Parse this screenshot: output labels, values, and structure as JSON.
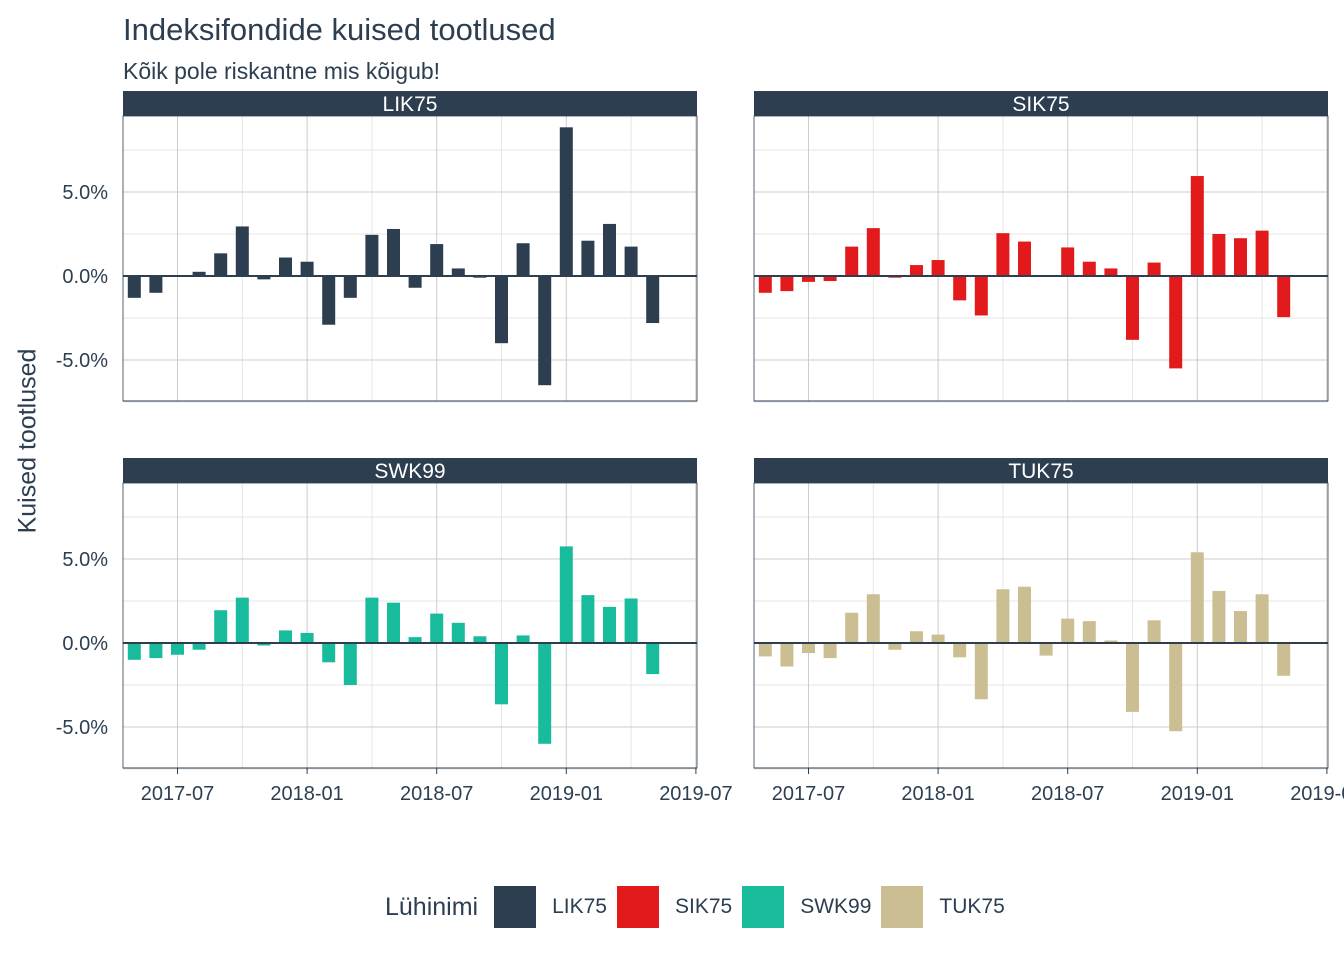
{
  "title": "Indeksifondide kuised tootlused",
  "subtitle": "Kõik pole riskantne mis kõigub!",
  "ylabel": "Kuised tootlused",
  "legend": {
    "title": "Lühinimi",
    "items": [
      {
        "label": "LIK75",
        "color": "#2c3e50"
      },
      {
        "label": "SIK75",
        "color": "#e31a1c"
      },
      {
        "label": "SWK99",
        "color": "#18bc9c"
      },
      {
        "label": "TUK75",
        "color": "#ccbe93"
      }
    ]
  },
  "chart_data": {
    "type": "bar",
    "facets": [
      "LIK75",
      "SIK75",
      "SWK99",
      "TUK75"
    ],
    "colors": {
      "LIK75": "#2c3e50",
      "SIK75": "#e31a1c",
      "SWK99": "#18bc9c",
      "TUK75": "#ccbe93"
    },
    "x_ticks": [
      "2017-07",
      "2018-01",
      "2018-07",
      "2019-01",
      "2019-07"
    ],
    "y_ticks": [
      "-5.0%",
      "0.0%",
      "5.0%"
    ],
    "y_tick_values": [
      -5,
      0,
      5
    ],
    "ylim": [
      -7.4,
      9.6
    ],
    "x": [
      "2017-05",
      "2017-06",
      "2017-07",
      "2017-08",
      "2017-09",
      "2017-10",
      "2017-11",
      "2017-12",
      "2018-01",
      "2018-02",
      "2018-03",
      "2018-04",
      "2018-05",
      "2018-06",
      "2018-07",
      "2018-08",
      "2018-09",
      "2018-10",
      "2018-11",
      "2018-12",
      "2019-01",
      "2019-02",
      "2019-03",
      "2019-04",
      "2019-05",
      "2019-06"
    ],
    "series": [
      {
        "name": "LIK75",
        "values": [
          -1.3,
          -1.0,
          0.0,
          0.25,
          1.35,
          2.95,
          -0.2,
          1.1,
          0.85,
          -2.9,
          -1.3,
          2.45,
          2.8,
          -0.7,
          1.9,
          0.45,
          -0.1,
          -4.0,
          1.95,
          -6.5,
          8.85,
          2.1,
          3.1,
          1.75,
          -2.8,
          null
        ]
      },
      {
        "name": "SIK75",
        "values": [
          -1.0,
          -0.9,
          -0.35,
          -0.3,
          1.75,
          2.85,
          -0.1,
          0.65,
          0.95,
          -1.45,
          -2.35,
          2.55,
          2.05,
          null,
          1.7,
          0.85,
          0.45,
          -3.8,
          0.8,
          -5.5,
          5.95,
          2.5,
          2.25,
          2.7,
          -2.45,
          null
        ]
      },
      {
        "name": "SWK99",
        "values": [
          -1.0,
          -0.9,
          -0.7,
          -0.4,
          1.95,
          2.7,
          -0.15,
          0.75,
          0.6,
          -1.15,
          -2.5,
          2.7,
          2.4,
          0.35,
          1.75,
          1.2,
          0.4,
          -3.65,
          0.45,
          -6.0,
          5.75,
          2.85,
          2.15,
          2.65,
          -1.85,
          null
        ]
      },
      {
        "name": "TUK75",
        "values": [
          -0.8,
          -1.4,
          -0.6,
          -0.9,
          1.8,
          2.9,
          -0.4,
          0.7,
          0.5,
          -0.85,
          -3.35,
          3.2,
          3.35,
          -0.75,
          1.45,
          1.3,
          0.15,
          -4.1,
          1.35,
          -5.25,
          5.4,
          3.1,
          1.9,
          2.9,
          -1.95,
          null
        ]
      }
    ]
  }
}
